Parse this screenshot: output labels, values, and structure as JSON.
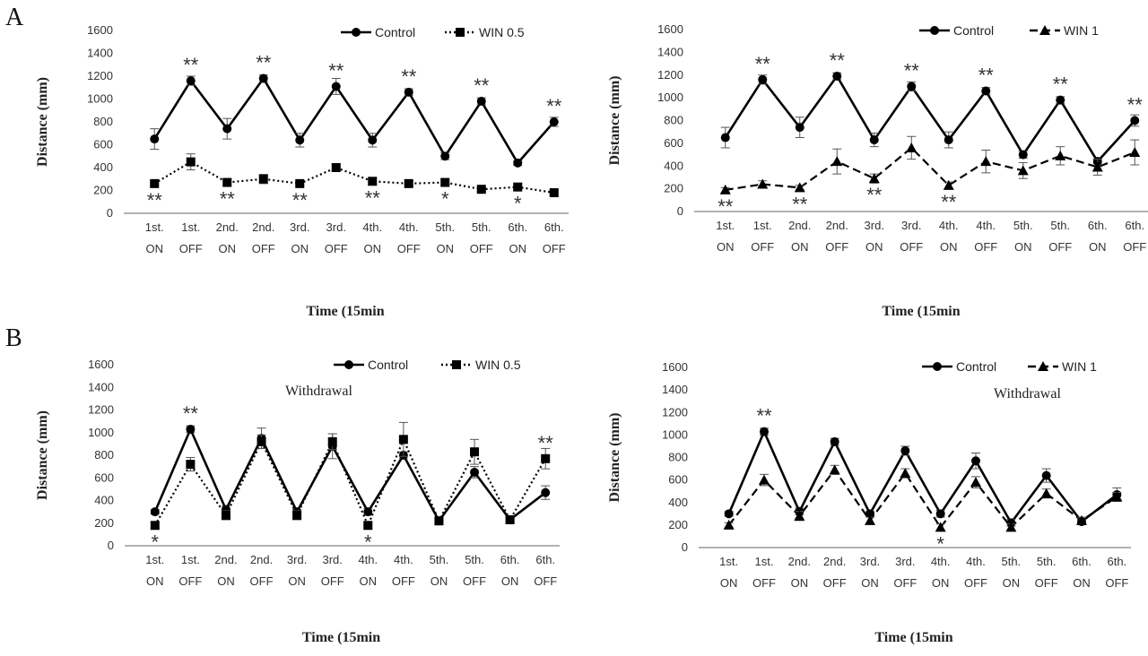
{
  "figure": {
    "panel_labels": [
      "A",
      "B"
    ]
  },
  "chart_data": [
    {
      "type": "line",
      "panel": "A",
      "categories": [
        "1st.\nON",
        "1st.\nOFF",
        "2nd.\nON",
        "2nd.\nOFF",
        "3rd.\nON",
        "3rd.\nOFF",
        "4th.\nON",
        "4th.\nOFF",
        "5th.\nON",
        "5th.\nOFF",
        "6th.\nON",
        "6th.\nOFF"
      ],
      "ylabel": "Distance (mm)",
      "xlabel": "Time (15min",
      "ylim": [
        0,
        1600
      ],
      "yticks": [
        0,
        200,
        400,
        600,
        800,
        1000,
        1200,
        1400,
        1600
      ],
      "legend_position": "top-right",
      "series": [
        {
          "name": "Control",
          "style": "solid",
          "marker": "circle",
          "values": [
            650,
            1160,
            740,
            1180,
            640,
            1110,
            640,
            1060,
            500,
            980,
            440,
            800
          ],
          "errors": [
            90,
            40,
            90,
            30,
            60,
            70,
            60,
            30,
            30,
            30,
            20,
            40
          ]
        },
        {
          "name": "WIN 0.5",
          "style": "dotted",
          "marker": "square",
          "values": [
            260,
            450,
            270,
            300,
            260,
            400,
            280,
            260,
            270,
            210,
            230,
            180
          ],
          "errors": [
            20,
            70,
            30,
            40,
            20,
            30,
            30,
            20,
            20,
            20,
            30,
            20
          ]
        }
      ],
      "annotations": [
        {
          "index": 0,
          "text": "**",
          "position": "below"
        },
        {
          "index": 1,
          "text": "**",
          "position": "above"
        },
        {
          "index": 2,
          "text": "**",
          "position": "below"
        },
        {
          "index": 3,
          "text": "**",
          "position": "above"
        },
        {
          "index": 4,
          "text": "**",
          "position": "below"
        },
        {
          "index": 5,
          "text": "**",
          "position": "above"
        },
        {
          "index": 6,
          "text": "**",
          "position": "below"
        },
        {
          "index": 7,
          "text": "**",
          "position": "above"
        },
        {
          "index": 8,
          "text": "*",
          "position": "below"
        },
        {
          "index": 9,
          "text": "**",
          "position": "above"
        },
        {
          "index": 10,
          "text": "*",
          "position": "below"
        },
        {
          "index": 11,
          "text": "**",
          "position": "above"
        }
      ]
    },
    {
      "type": "line",
      "panel": "A",
      "categories": [
        "1st.\nON",
        "1st.\nOFF",
        "2nd.\nON",
        "2nd.\nOFF",
        "3rd.\nON",
        "3rd.\nOFF",
        "4th.\nON",
        "4th.\nOFF",
        "5th.\nON",
        "5th.\nOFF",
        "6th.\nON",
        "6th.\nOFF"
      ],
      "ylabel": "Distance (mm)",
      "xlabel": "Time (15min",
      "ylim": [
        0,
        1600
      ],
      "yticks": [
        0,
        200,
        400,
        600,
        800,
        1000,
        1200,
        1400,
        1600
      ],
      "legend_position": "top-right",
      "series": [
        {
          "name": "Control",
          "style": "solid",
          "marker": "circle",
          "values": [
            650,
            1160,
            740,
            1190,
            630,
            1100,
            630,
            1060,
            500,
            980,
            440,
            800
          ],
          "errors": [
            90,
            40,
            90,
            30,
            60,
            40,
            70,
            30,
            30,
            30,
            20,
            50
          ]
        },
        {
          "name": "WIN 1",
          "style": "dashed",
          "marker": "triangle",
          "values": [
            190,
            240,
            210,
            440,
            290,
            560,
            230,
            440,
            360,
            490,
            390,
            520
          ],
          "errors": [
            20,
            30,
            20,
            110,
            40,
            100,
            30,
            100,
            70,
            80,
            70,
            110
          ]
        }
      ],
      "annotations": [
        {
          "index": 0,
          "text": "**",
          "position": "below"
        },
        {
          "index": 1,
          "text": "**",
          "position": "above"
        },
        {
          "index": 2,
          "text": "**",
          "position": "below"
        },
        {
          "index": 3,
          "text": "**",
          "position": "above"
        },
        {
          "index": 4,
          "text": "**",
          "position": "below"
        },
        {
          "index": 5,
          "text": "**",
          "position": "above"
        },
        {
          "index": 6,
          "text": "**",
          "position": "below"
        },
        {
          "index": 7,
          "text": "**",
          "position": "above"
        },
        {
          "index": 9,
          "text": "**",
          "position": "above"
        },
        {
          "index": 11,
          "text": "**",
          "position": "above"
        }
      ]
    },
    {
      "type": "line",
      "panel": "B",
      "note": "Withdrawal",
      "categories": [
        "1st.\nON",
        "1st.\nOFF",
        "2nd.\nON",
        "2nd.\nOFF",
        "3rd.\nON",
        "3rd.\nOFF",
        "4th.\nON",
        "4th.\nOFF",
        "5th.\nON",
        "5th.\nOFF",
        "6th.\nON",
        "6th.\nOFF"
      ],
      "ylabel": "Distance (mm)",
      "xlabel": "Time (15min",
      "ylim": [
        0,
        1600
      ],
      "yticks": [
        0,
        200,
        400,
        600,
        800,
        1000,
        1200,
        1400,
        1600
      ],
      "legend_position": "top-right",
      "series": [
        {
          "name": "Control",
          "style": "solid",
          "marker": "circle",
          "values": [
            300,
            1030,
            320,
            950,
            300,
            880,
            300,
            800,
            220,
            650,
            230,
            470
          ],
          "errors": [
            20,
            30,
            30,
            90,
            20,
            110,
            30,
            30,
            30,
            50,
            20,
            60
          ]
        },
        {
          "name": "WIN 0.5",
          "style": "dotted",
          "marker": "square",
          "values": [
            180,
            720,
            270,
            920,
            270,
            920,
            180,
            940,
            220,
            830,
            230,
            770
          ],
          "errors": [
            30,
            60,
            40,
            60,
            40,
            70,
            30,
            150,
            30,
            110,
            30,
            90
          ]
        }
      ],
      "annotations": [
        {
          "index": 0,
          "text": "*",
          "position": "below"
        },
        {
          "index": 1,
          "text": "**",
          "position": "above"
        },
        {
          "index": 6,
          "text": "*",
          "position": "below"
        },
        {
          "index": 11,
          "text": "**",
          "position": "above"
        }
      ]
    },
    {
      "type": "line",
      "panel": "B",
      "note": "Withdrawal",
      "categories": [
        "1st.\nON",
        "1st.\nOFF",
        "2nd.\nON",
        "2nd.\nOFF",
        "3rd.\nON",
        "3rd.\nOFF",
        "4th.\nON",
        "4th.\nOFF",
        "5th.\nON",
        "5th.\nOFF",
        "6th.\nON",
        "6th.\nOFF"
      ],
      "ylabel": "Distance (mm)",
      "xlabel": "Time (15min",
      "ylim": [
        0,
        1600
      ],
      "yticks": [
        0,
        200,
        400,
        600,
        800,
        1000,
        1200,
        1400,
        1600
      ],
      "legend_position": "top-right",
      "series": [
        {
          "name": "Control",
          "style": "solid",
          "marker": "circle",
          "values": [
            300,
            1030,
            320,
            940,
            300,
            860,
            300,
            770,
            220,
            640,
            230,
            470
          ],
          "errors": [
            20,
            30,
            30,
            30,
            20,
            40,
            30,
            70,
            30,
            60,
            20,
            60
          ]
        },
        {
          "name": "WIN 1",
          "style": "dashed",
          "marker": "triangle",
          "values": [
            200,
            600,
            280,
            690,
            240,
            660,
            180,
            580,
            180,
            480,
            240,
            450
          ],
          "errors": [
            20,
            50,
            40,
            40,
            30,
            40,
            30,
            50,
            30,
            40,
            30,
            40
          ]
        }
      ],
      "annotations": [
        {
          "index": 1,
          "text": "**",
          "position": "above"
        },
        {
          "index": 6,
          "text": "*",
          "position": "below"
        }
      ]
    }
  ]
}
